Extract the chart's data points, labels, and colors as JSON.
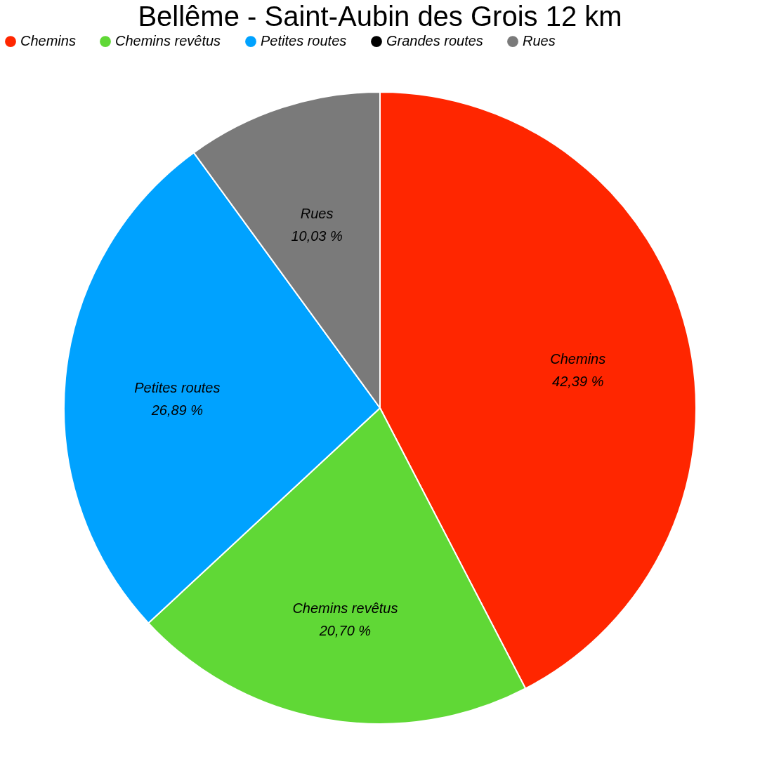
{
  "chart_data": {
    "type": "pie",
    "title": "Bellême - Saint-Aubin des Grois 12 km",
    "categories": [
      "Chemins",
      "Chemins revêtus",
      "Petites routes",
      "Grandes routes",
      "Rues"
    ],
    "values": [
      42.39,
      20.7,
      26.89,
      0,
      10.03
    ],
    "colors": [
      "#ff2600",
      "#60d836",
      "#00a2ff",
      "#000000",
      "#7a7a7a"
    ],
    "value_labels": [
      "42,39 %",
      "20,70 %",
      "26,89 %",
      null,
      "10,03 %"
    ],
    "legend": "top"
  }
}
